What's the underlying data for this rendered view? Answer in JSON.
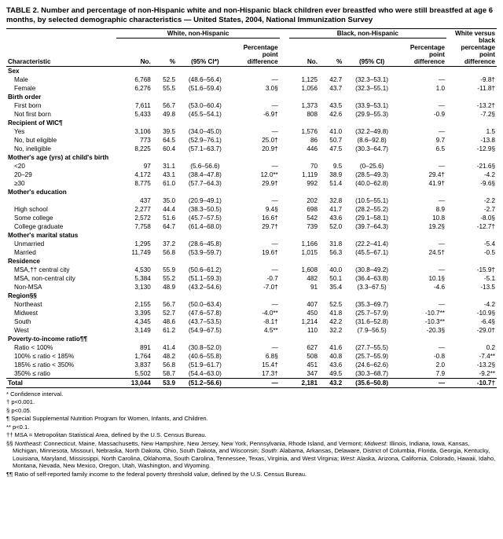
{
  "title": "TABLE 2. Number and percentage of non-Hispanic white and non-Hispanic black children ever breastfed who were still breastfed at age 6 months, by selected demographic characteristics — United States, 2004, National Immunization Survey",
  "group_headers": {
    "white": "White, non-Hispanic",
    "black": "Black, non-Hispanic",
    "wvb": "White versus black percentage point difference"
  },
  "col_headers": {
    "char": "Characteristic",
    "no": "No.",
    "pct": "%",
    "ci_w": "(95% CI*)",
    "ci_b": "(95% CI)",
    "ppd": "Percentage point difference"
  },
  "sections": [
    {
      "label": "Sex",
      "rows": [
        {
          "c": "Male",
          "wn": "6,768",
          "wp": "52.5",
          "wci": "(48.6–56.4)",
          "wd": "—",
          "bn": "1,125",
          "bp": "42.7",
          "bci": "(32.3–53.1)",
          "bd": "—",
          "diff": "-9.8†"
        },
        {
          "c": "Female",
          "wn": "6,276",
          "wp": "55.5",
          "wci": "(51.6–59.4)",
          "wd": "3.0§",
          "bn": "1,056",
          "bp": "43.7",
          "bci": "(32.3–55.1)",
          "bd": "1.0",
          "diff": "-11.8†"
        }
      ]
    },
    {
      "label": "Birth order",
      "rows": [
        {
          "c": "First born",
          "wn": "7,611",
          "wp": "56.7",
          "wci": "(53.0–60.4)",
          "wd": "—",
          "bn": "1,373",
          "bp": "43.5",
          "bci": "(33.9–53.1)",
          "bd": "—",
          "diff": "-13.2†"
        },
        {
          "c": "Not first born",
          "wn": "5,433",
          "wp": "49.8",
          "wci": "(45.5–54.1)",
          "wd": "-6.9†",
          "bn": "808",
          "bp": "42.6",
          "bci": "(29.9–55.3)",
          "bd": "-0.9",
          "diff": "-7.2§"
        }
      ]
    },
    {
      "label": "Recipient of WIC¶",
      "rows": [
        {
          "c": "Yes",
          "wn": "3,106",
          "wp": "39.5",
          "wci": "(34.0–45.0)",
          "wd": "—",
          "bn": "1,576",
          "bp": "41.0",
          "bci": "(32.2–49.8)",
          "bd": "—",
          "diff": "1.5"
        },
        {
          "c": "No, but eligible",
          "wn": "773",
          "wp": "64.5",
          "wci": "(52.9–76.1)",
          "wd": "25.0†",
          "bn": "86",
          "bp": "50.7",
          "bci": "(8.6–92.8)",
          "bd": "9.7",
          "diff": "-13.8"
        },
        {
          "c": "No, ineligible",
          "wn": "8,225",
          "wp": "60.4",
          "wci": "(57.1–63.7)",
          "wd": "20.9†",
          "bn": "446",
          "bp": "47.5",
          "bci": "(30.3–64.7)",
          "bd": "6.5",
          "diff": "-12.9§"
        }
      ]
    },
    {
      "label": "Mother's age (yrs) at child's birth",
      "rows": [
        {
          "c": "<20",
          "wn": "97",
          "wp": "31.1",
          "wci": "(5.6–56.6)",
          "wd": "—",
          "bn": "70",
          "bp": "9.5",
          "bci": "(0–25.6)",
          "bd": "—",
          "diff": "-21.6§"
        },
        {
          "c": "20–29",
          "wn": "4,172",
          "wp": "43.1",
          "wci": "(38.4–47.8)",
          "wd": "12.0**",
          "bn": "1,119",
          "bp": "38.9",
          "bci": "(28.5–49.3)",
          "bd": "29.4†",
          "diff": "-4.2"
        },
        {
          "c": "≥30",
          "wn": "8,775",
          "wp": "61.0",
          "wci": "(57.7–64.3)",
          "wd": "29.9†",
          "bn": "992",
          "bp": "51.4",
          "bci": "(40.0–62.8)",
          "bd": "41.9†",
          "diff": "-9.6§"
        }
      ]
    },
    {
      "label": "Mother's education",
      "rows": [
        {
          "c": "<High school",
          "wn": "437",
          "wp": "35.0",
          "wci": "(20.9–49.1)",
          "wd": "—",
          "bn": "202",
          "bp": "32.8",
          "bci": "(10.5–55.1)",
          "bd": "—",
          "diff": "-2.2"
        },
        {
          "c": "High school",
          "wn": "2,277",
          "wp": "44.4",
          "wci": "(38.3–50.5)",
          "wd": "9.4§",
          "bn": "698",
          "bp": "41.7",
          "bci": "(28.2–55.2)",
          "bd": "8.9",
          "diff": "-2.7"
        },
        {
          "c": "Some college",
          "wn": "2,572",
          "wp": "51.6",
          "wci": "(45.7–57.5)",
          "wd": "16.6†",
          "bn": "542",
          "bp": "43.6",
          "bci": "(29.1–58.1)",
          "bd": "10.8",
          "diff": "-8.0§"
        },
        {
          "c": "College graduate",
          "wn": "7,758",
          "wp": "64.7",
          "wci": "(61.4–68.0)",
          "wd": "29.7†",
          "bn": "739",
          "bp": "52.0",
          "bci": "(39.7–64.3)",
          "bd": "19.2§",
          "diff": "-12.7†"
        }
      ]
    },
    {
      "label": "Mother's marital status",
      "rows": [
        {
          "c": "Unmarried",
          "wn": "1,295",
          "wp": "37.2",
          "wci": "(28.6–45.8)",
          "wd": "—",
          "bn": "1,166",
          "bp": "31.8",
          "bci": "(22.2–41.4)",
          "bd": "—",
          "diff": "-5.4"
        },
        {
          "c": "Married",
          "wn": "11,749",
          "wp": "56.8",
          "wci": "(53.9–59.7)",
          "wd": "19.6†",
          "bn": "1,015",
          "bp": "56.3",
          "bci": "(45.5–67.1)",
          "bd": "24.5†",
          "diff": "-0.5"
        }
      ]
    },
    {
      "label": "Residence",
      "rows": [
        {
          "c": "MSA,†† central city",
          "wn": "4,530",
          "wp": "55.9",
          "wci": "(50.6–61.2)",
          "wd": "—",
          "bn": "1,608",
          "bp": "40.0",
          "bci": "(30.8–49.2)",
          "bd": "—",
          "diff": "-15.9†"
        },
        {
          "c": "MSA, non-central city",
          "wn": "5,384",
          "wp": "55.2",
          "wci": "(51.1–59.3)",
          "wd": "-0.7",
          "bn": "482",
          "bp": "50.1",
          "bci": "(36.4–63.8)",
          "bd": "10.1§",
          "diff": "-5.1"
        },
        {
          "c": "Non-MSA",
          "wn": "3,130",
          "wp": "48.9",
          "wci": "(43.2–54.6)",
          "wd": "-7.0†",
          "bn": "91",
          "bp": "35.4",
          "bci": "(3.3–67.5)",
          "bd": "-4.6",
          "diff": "-13.5"
        }
      ]
    },
    {
      "label": "Region§§",
      "rows": [
        {
          "c": "Northeast",
          "wn": "2,155",
          "wp": "56.7",
          "wci": "(50.0–63.4)",
          "wd": "—",
          "bn": "407",
          "bp": "52.5",
          "bci": "(35.3–69.7)",
          "bd": "—",
          "diff": "-4.2"
        },
        {
          "c": "Midwest",
          "wn": "3,395",
          "wp": "52.7",
          "wci": "(47.6–57.8)",
          "wd": "-4.0**",
          "bn": "450",
          "bp": "41.8",
          "bci": "(25.7–57.9)",
          "bd": "-10.7**",
          "diff": "-10.9§"
        },
        {
          "c": "South",
          "wn": "4,345",
          "wp": "48.6",
          "wci": "(43.7–53.5)",
          "wd": "-8.1†",
          "bn": "1,214",
          "bp": "42.2",
          "bci": "(31.6–52.8)",
          "bd": "-10.3**",
          "diff": "-6.4§"
        },
        {
          "c": "West",
          "wn": "3,149",
          "wp": "61.2",
          "wci": "(54.9–67.5)",
          "wd": "4.5**",
          "bn": "110",
          "bp": "32.2",
          "bci": "(7.9–56.5)",
          "bd": "-20.3§",
          "diff": "-29.0†"
        }
      ]
    },
    {
      "label": "Poverty-to-income ratio¶¶",
      "rows": [
        {
          "c": "Ratio < 100%",
          "wn": "891",
          "wp": "41.4",
          "wci": "(30.8–52.0)",
          "wd": "—",
          "bn": "627",
          "bp": "41.6",
          "bci": "(27.7–55.5)",
          "bd": "—",
          "diff": "0.2"
        },
        {
          "c": "100% ≤ ratio < 185%",
          "wn": "1,764",
          "wp": "48.2",
          "wci": "(40.6–55.8)",
          "wd": "6.8§",
          "bn": "508",
          "bp": "40.8",
          "bci": "(25.7–55.9)",
          "bd": "-0.8",
          "diff": "-7.4**"
        },
        {
          "c": "185% ≤ ratio < 350%",
          "wn": "3,837",
          "wp": "56.8",
          "wci": "(51.9–61.7)",
          "wd": "15.4†",
          "bn": "451",
          "bp": "43.6",
          "bci": "(24.6–62.6)",
          "bd": "2.0",
          "diff": "-13.2§"
        },
        {
          "c": "350% ≤ ratio",
          "wn": "5,502",
          "wp": "58.7",
          "wci": "(54.4–63.0)",
          "wd": "17.3†",
          "bn": "347",
          "bp": "49.5",
          "bci": "(30.3–68.7)",
          "bd": "7.9",
          "diff": "-9.2**"
        }
      ]
    }
  ],
  "total": {
    "c": "Total",
    "wn": "13,044",
    "wp": "53.9",
    "wci": "(51.2–56.6)",
    "wd": "—",
    "bn": "2,181",
    "bp": "43.2",
    "bci": "(35.6–50.8)",
    "bd": "—",
    "diff": "-10.7†"
  },
  "footnotes": [
    "* Confidence interval.",
    "† p<0.001.",
    "§ p<0.05.",
    "¶ Special Supplemental Nutrition Program for Women, Infants, and Children.",
    "** p<0.1.",
    "†† MSA = Metropolitan Statistical Area, defined by the U.S. Census Bureau.",
    "§§ Northeast: Connecticut, Maine, Massachusetts, New Hampshire, New Jersey, New York, Pennsylvania, Rhode Island, and Vermont; Midwest: Illinois, Indiana, Iowa, Kansas, Michigan, Minnesota, Missouri, Nebraska, North Dakota, Ohio, South Dakota, and Wisconsin; South: Alabama, Arkansas, Delaware, District of Columbia, Florida, Georgia, Kentucky, Louisiana, Maryland, Mississippi, North Carolina, Oklahoma, South Carolina, Tennessee, Texas, Virginia, and West Virginia; West: Alaska, Arizona, California, Colorado, Hawaii, Idaho, Montana, Nevada, New Mexico, Oregon, Utah, Washington, and Wyoming.",
    "¶¶ Ratio of self-reported family income to the federal poverty threshold value, defined by the U.S. Census Bureau."
  ]
}
